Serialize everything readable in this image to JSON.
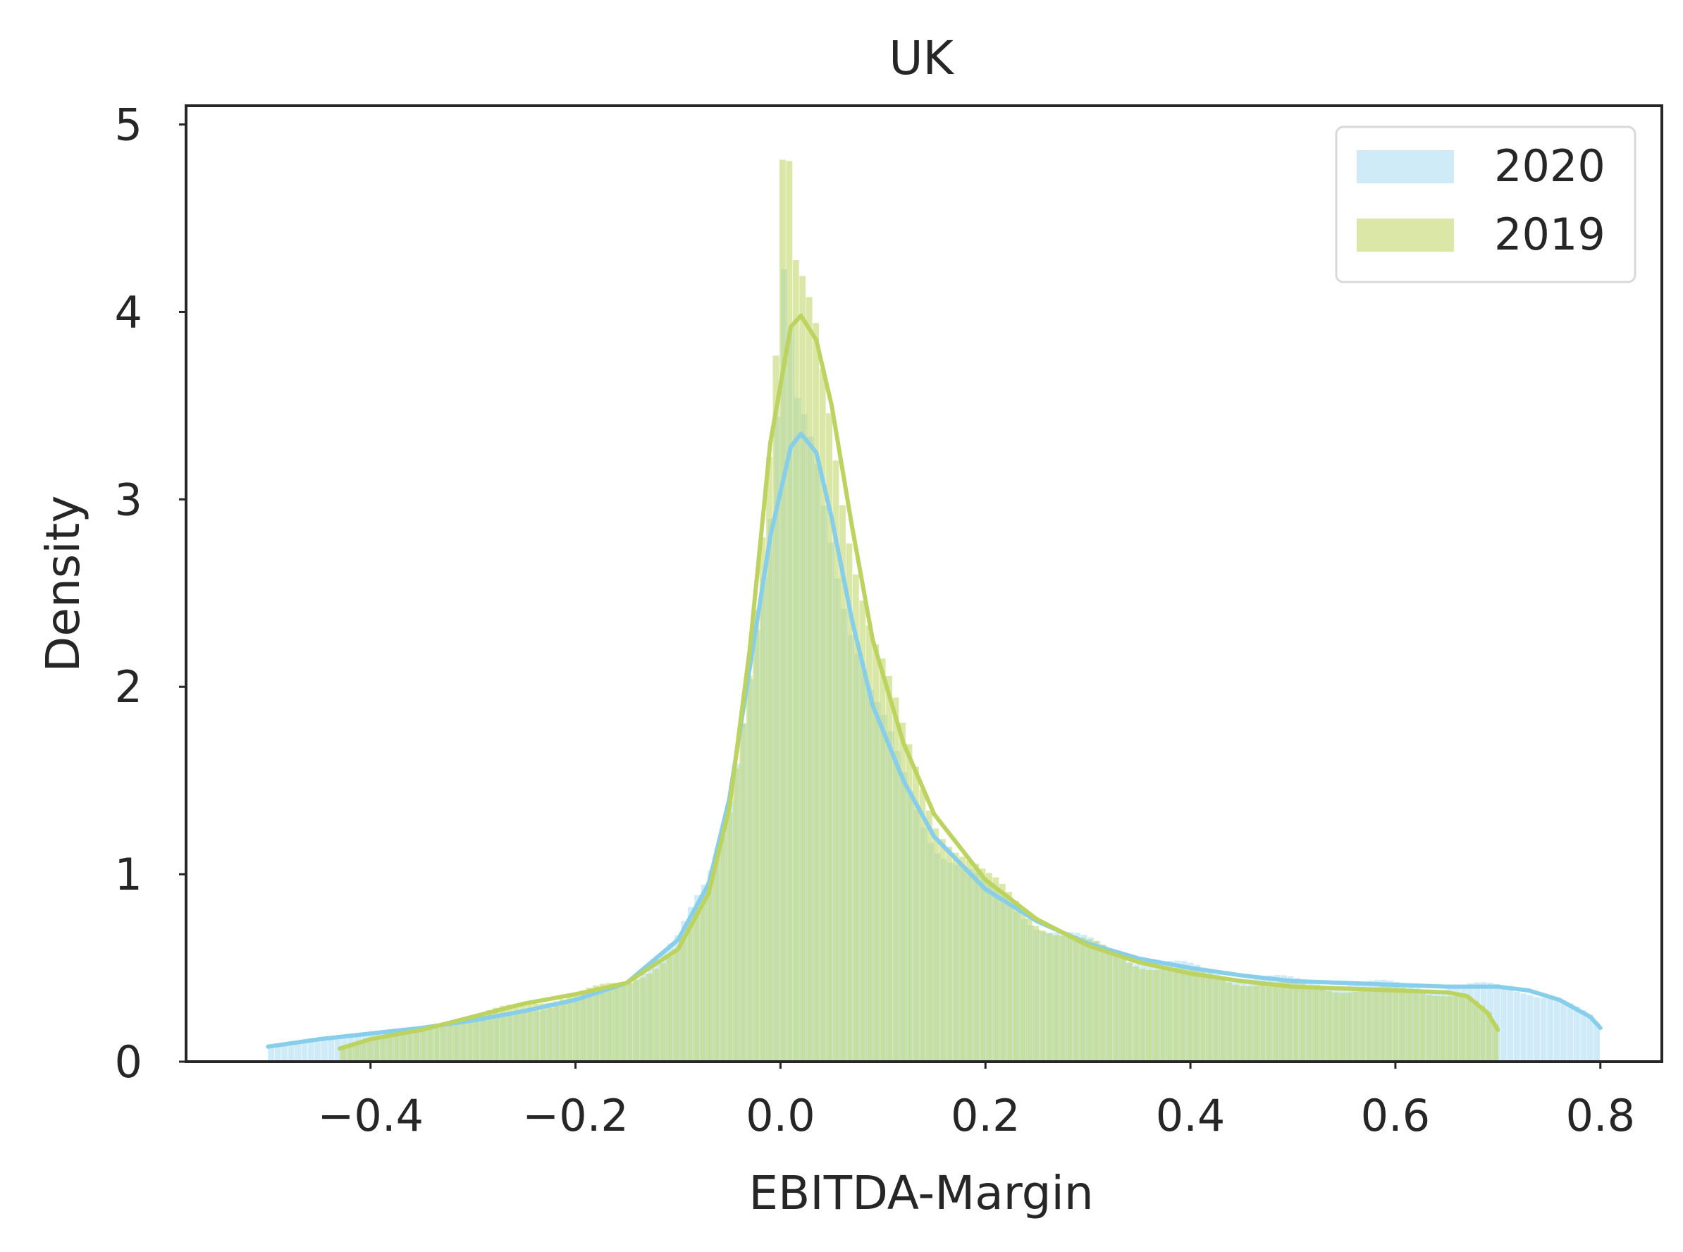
{
  "chart_data": {
    "type": "histogram",
    "title": "UK",
    "xlabel": "EBITDA-Margin",
    "ylabel": "Density",
    "xlim": [
      -0.58,
      0.86
    ],
    "ylim": [
      0,
      5.1
    ],
    "xticks": [
      -0.4,
      -0.2,
      0.0,
      0.2,
      0.4,
      0.6,
      0.8
    ],
    "xtick_labels": [
      "−0.4",
      "−0.2",
      "0.0",
      "0.2",
      "0.4",
      "0.6",
      "0.8"
    ],
    "yticks": [
      0,
      1,
      2,
      3,
      4,
      5
    ],
    "ytick_labels": [
      "0",
      "1",
      "2",
      "3",
      "4",
      "5"
    ],
    "grid": false,
    "legend_position": "top-right",
    "series": [
      {
        "name": "2020",
        "color": "#87ceeb",
        "bar_opacity": 0.4,
        "hist_range": [
          -0.5,
          0.8
        ],
        "kde": [
          [
            -0.5,
            0.08
          ],
          [
            -0.45,
            0.12
          ],
          [
            -0.4,
            0.15
          ],
          [
            -0.35,
            0.18
          ],
          [
            -0.3,
            0.22
          ],
          [
            -0.25,
            0.27
          ],
          [
            -0.2,
            0.33
          ],
          [
            -0.15,
            0.42
          ],
          [
            -0.1,
            0.65
          ],
          [
            -0.07,
            0.95
          ],
          [
            -0.05,
            1.4
          ],
          [
            -0.03,
            2.1
          ],
          [
            -0.01,
            2.8
          ],
          [
            0.01,
            3.28
          ],
          [
            0.02,
            3.35
          ],
          [
            0.035,
            3.25
          ],
          [
            0.05,
            2.9
          ],
          [
            0.07,
            2.35
          ],
          [
            0.09,
            1.9
          ],
          [
            0.12,
            1.5
          ],
          [
            0.15,
            1.2
          ],
          [
            0.2,
            0.92
          ],
          [
            0.25,
            0.75
          ],
          [
            0.3,
            0.63
          ],
          [
            0.35,
            0.55
          ],
          [
            0.4,
            0.5
          ],
          [
            0.45,
            0.46
          ],
          [
            0.5,
            0.43
          ],
          [
            0.55,
            0.42
          ],
          [
            0.6,
            0.41
          ],
          [
            0.65,
            0.4
          ],
          [
            0.7,
            0.4
          ],
          [
            0.73,
            0.38
          ],
          [
            0.76,
            0.33
          ],
          [
            0.79,
            0.24
          ],
          [
            0.8,
            0.18
          ]
        ]
      },
      {
        "name": "2019",
        "color": "#bcd35f",
        "bar_opacity": 0.55,
        "hist_range": [
          -0.43,
          0.7
        ],
        "kde": [
          [
            -0.43,
            0.07
          ],
          [
            -0.4,
            0.12
          ],
          [
            -0.35,
            0.17
          ],
          [
            -0.3,
            0.24
          ],
          [
            -0.25,
            0.31
          ],
          [
            -0.2,
            0.36
          ],
          [
            -0.15,
            0.42
          ],
          [
            -0.1,
            0.6
          ],
          [
            -0.07,
            0.9
          ],
          [
            -0.05,
            1.35
          ],
          [
            -0.03,
            2.2
          ],
          [
            -0.01,
            3.3
          ],
          [
            0.01,
            3.92
          ],
          [
            0.02,
            3.98
          ],
          [
            0.035,
            3.85
          ],
          [
            0.05,
            3.5
          ],
          [
            0.07,
            2.85
          ],
          [
            0.09,
            2.25
          ],
          [
            0.12,
            1.7
          ],
          [
            0.15,
            1.32
          ],
          [
            0.2,
            0.97
          ],
          [
            0.25,
            0.76
          ],
          [
            0.3,
            0.62
          ],
          [
            0.35,
            0.53
          ],
          [
            0.4,
            0.47
          ],
          [
            0.45,
            0.43
          ],
          [
            0.5,
            0.4
          ],
          [
            0.55,
            0.39
          ],
          [
            0.6,
            0.38
          ],
          [
            0.65,
            0.37
          ],
          [
            0.67,
            0.35
          ],
          [
            0.69,
            0.26
          ],
          [
            0.7,
            0.17
          ]
        ]
      }
    ]
  }
}
